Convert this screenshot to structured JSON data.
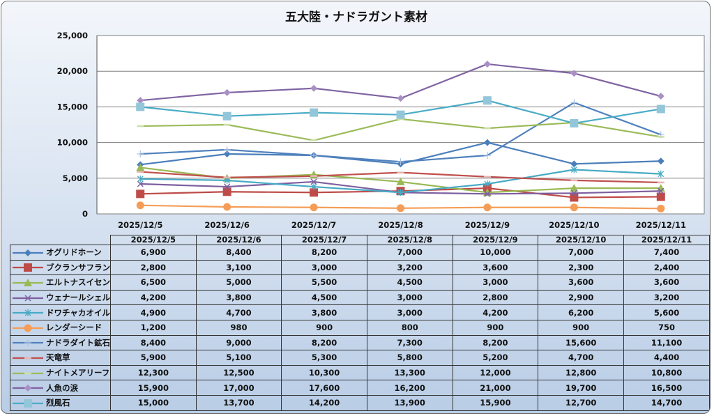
{
  "chart_data": {
    "type": "line",
    "title": "五大陸・ナドラガント素材",
    "xlabel": "",
    "ylabel": "",
    "ylim": [
      0,
      25000
    ],
    "yticks": [
      0,
      5000,
      10000,
      15000,
      20000,
      25000
    ],
    "ytick_labels": [
      "0",
      "5,000",
      "10,000",
      "15,000",
      "20,000",
      "25,000"
    ],
    "grid": true,
    "legend": "data-table-bottom",
    "categories": [
      "2025/12/5",
      "2025/12/6",
      "2025/12/7",
      "2025/12/8",
      "2025/12/9",
      "2025/12/10",
      "2025/12/11"
    ],
    "series": [
      {
        "name": "オグリドホーン",
        "color": "#4a7ebb",
        "marker": "diamond",
        "values": [
          6900,
          8400,
          8200,
          7000,
          10000,
          7000,
          7400
        ],
        "labels": [
          "6,900",
          "8,400",
          "8,200",
          "7,000",
          "10,000",
          "7,000",
          "7,400"
        ]
      },
      {
        "name": "ブクランサフラン",
        "color": "#be4b48",
        "marker": "square",
        "values": [
          2800,
          3100,
          3000,
          3200,
          3600,
          2300,
          2400
        ],
        "labels": [
          "2,800",
          "3,100",
          "3,000",
          "3,200",
          "3,600",
          "2,300",
          "2,400"
        ]
      },
      {
        "name": "エルトナスイセン",
        "color": "#98b954",
        "marker": "triangle",
        "values": [
          6500,
          5000,
          5500,
          4500,
          3000,
          3600,
          3600
        ],
        "labels": [
          "6,500",
          "5,000",
          "5,500",
          "4,500",
          "3,000",
          "3,600",
          "3,600"
        ]
      },
      {
        "name": "ウェナールシェル",
        "color": "#7d5fa0",
        "marker": "x",
        "values": [
          4200,
          3800,
          4500,
          3000,
          2800,
          2900,
          3200
        ],
        "labels": [
          "4,200",
          "3,800",
          "4,500",
          "3,000",
          "2,800",
          "2,900",
          "3,200"
        ]
      },
      {
        "name": "ドワチャカオイル",
        "color": "#46aac5",
        "marker": "star",
        "values": [
          4900,
          4700,
          3800,
          3000,
          4200,
          6200,
          5600
        ],
        "labels": [
          "4,900",
          "4,700",
          "3,800",
          "3,000",
          "4,200",
          "6,200",
          "5,600"
        ]
      },
      {
        "name": "レンダーシード",
        "color": "#f59d56",
        "marker": "circle",
        "values": [
          1200,
          980,
          900,
          800,
          900,
          900,
          750
        ],
        "labels": [
          "1,200",
          "980",
          "900",
          "800",
          "900",
          "900",
          "750"
        ]
      },
      {
        "name": "ナドラダイト鉱石",
        "color": "#4f81bd",
        "marker": "plus",
        "values": [
          8400,
          9000,
          8200,
          7300,
          8200,
          15600,
          11100
        ],
        "labels": [
          "8,400",
          "9,000",
          "8,200",
          "7,300",
          "8,200",
          "15,600",
          "11,100"
        ]
      },
      {
        "name": "天竜草",
        "color": "#c0504d",
        "marker": "dash",
        "values": [
          5900,
          5100,
          5300,
          5800,
          5200,
          4700,
          4400
        ],
        "labels": [
          "5,900",
          "5,100",
          "5,300",
          "5,800",
          "5,200",
          "4,700",
          "4,400"
        ]
      },
      {
        "name": "ナイトメアリーフ",
        "color": "#9bbb59",
        "marker": "dash",
        "values": [
          12300,
          12500,
          10300,
          13300,
          12000,
          12800,
          10800
        ],
        "labels": [
          "12,300",
          "12,500",
          "10,300",
          "13,300",
          "12,000",
          "12,800",
          "10,800"
        ]
      },
      {
        "name": "人魚の涙",
        "color": "#8064a2",
        "marker": "diamond",
        "markerColor": "#a98fc4",
        "values": [
          15900,
          17000,
          17600,
          16200,
          21000,
          19700,
          16500
        ],
        "labels": [
          "15,900",
          "17,000",
          "17,600",
          "16,200",
          "21,000",
          "19,700",
          "16,500"
        ]
      },
      {
        "name": "烈風石",
        "color": "#4bacc6",
        "marker": "square",
        "markerColor": "#93c6d9",
        "values": [
          15000,
          13700,
          14200,
          13900,
          15900,
          12700,
          14700
        ],
        "labels": [
          "15,000",
          "13,700",
          "14,200",
          "13,900",
          "15,900",
          "12,700",
          "14,700"
        ]
      }
    ]
  }
}
